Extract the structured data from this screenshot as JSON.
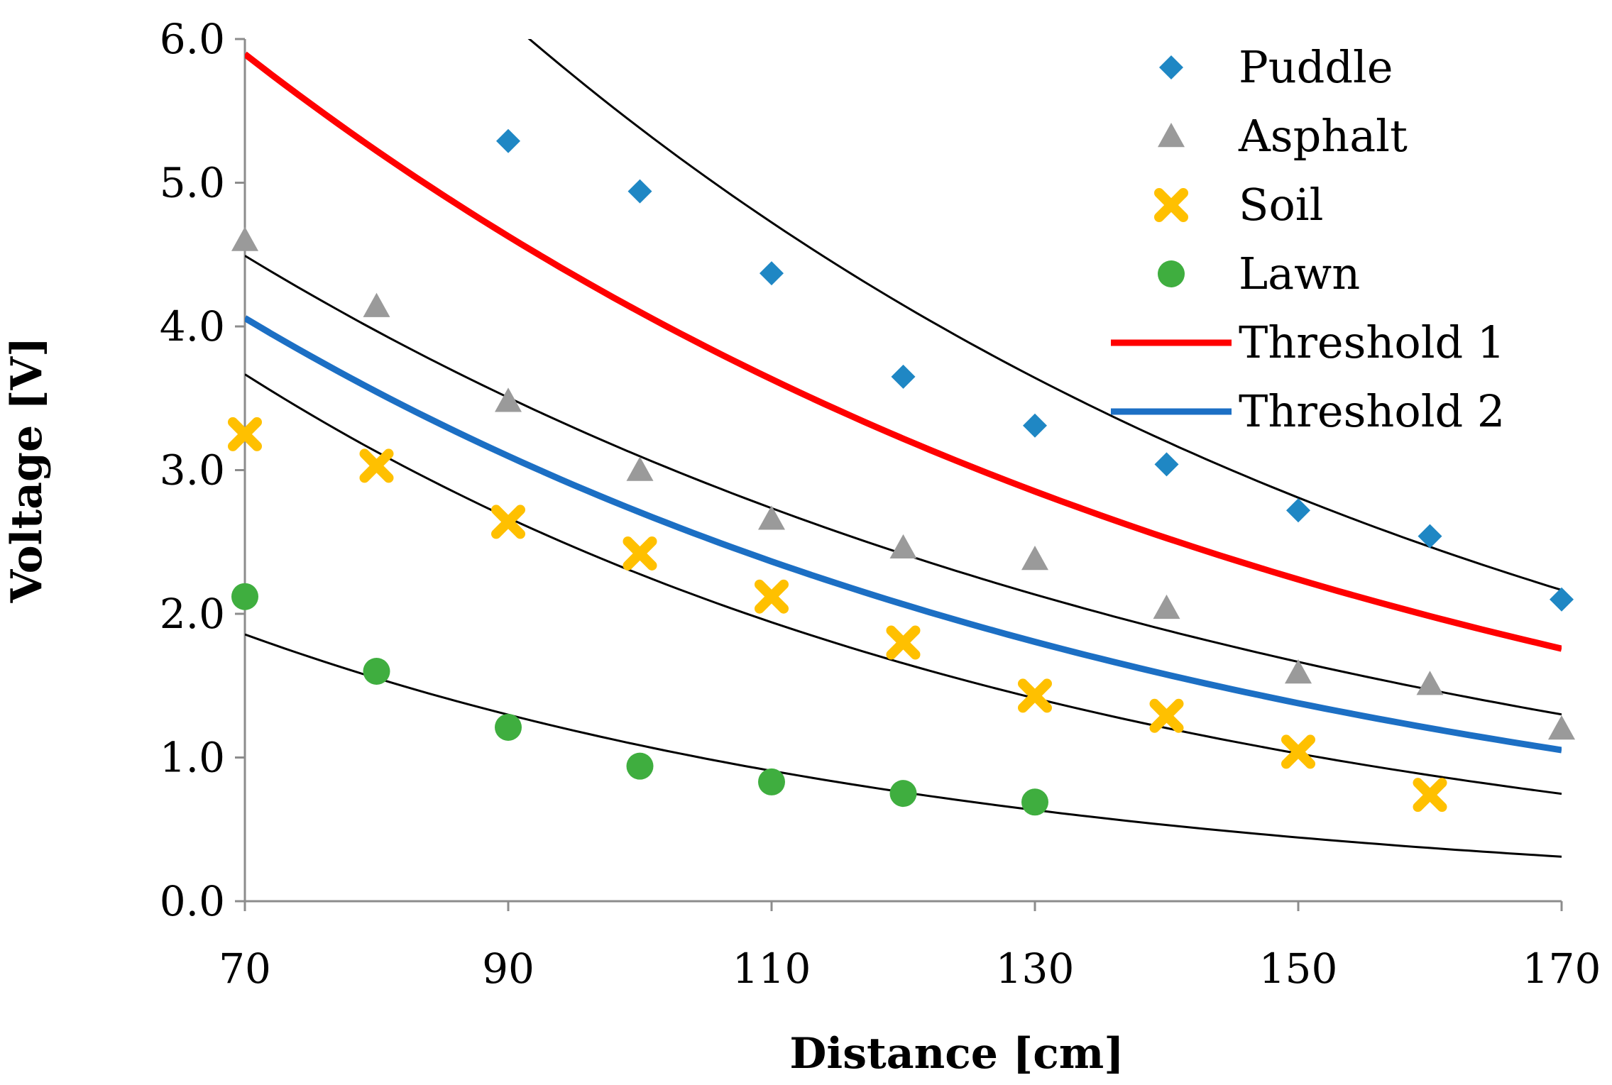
{
  "chart_data": {
    "type": "scatter",
    "title": "",
    "xlabel": "Distance [cm]",
    "ylabel": "Voltage [V]",
    "xlim": [
      70,
      170
    ],
    "ylim": [
      0,
      6
    ],
    "xticks": [
      70,
      90,
      110,
      130,
      150,
      170
    ],
    "xtick_labels": [
      "70",
      "90",
      "110",
      "130",
      "150",
      "170"
    ],
    "yticks": [
      0,
      1,
      2,
      3,
      4,
      5,
      6
    ],
    "ytick_labels": [
      "0.0",
      "1.0",
      "2.0",
      "3.0",
      "4.0",
      "5.0",
      "6.0"
    ],
    "grid": false,
    "legend_position": "top-right",
    "series": [
      {
        "name": "Puddle",
        "kind": "points",
        "marker": "diamond",
        "color": "#1f87c4",
        "x": [
          90,
          100,
          110,
          120,
          130,
          140,
          150,
          160,
          170
        ],
        "y": [
          5.29,
          4.94,
          4.37,
          3.65,
          3.31,
          3.04,
          2.72,
          2.54,
          2.1
        ]
      },
      {
        "name": "Asphalt",
        "kind": "points",
        "marker": "triangle",
        "color": "#9a9a9a",
        "x": [
          70,
          80,
          90,
          100,
          110,
          120,
          130,
          140,
          150,
          160,
          170
        ],
        "y": [
          4.6,
          4.14,
          3.48,
          3.0,
          2.66,
          2.46,
          2.38,
          2.04,
          1.59,
          1.51,
          1.2
        ]
      },
      {
        "name": "Soil",
        "kind": "points",
        "marker": "x",
        "color": "#ffc000",
        "x": [
          70,
          80,
          90,
          100,
          110,
          120,
          130,
          140,
          150,
          160
        ],
        "y": [
          3.25,
          3.03,
          2.64,
          2.42,
          2.12,
          1.8,
          1.43,
          1.29,
          1.04,
          0.74
        ]
      },
      {
        "name": "Lawn",
        "kind": "points",
        "marker": "circle",
        "color": "#3fae3f",
        "x": [
          70,
          80,
          90,
          100,
          110,
          120,
          130
        ],
        "y": [
          2.12,
          1.6,
          1.21,
          0.94,
          0.83,
          0.75,
          0.69
        ]
      },
      {
        "name": "Threshold 1",
        "kind": "line",
        "color": "#ff0000",
        "a": 13.75,
        "b": -0.0121
      },
      {
        "name": "Threshold 2",
        "kind": "line",
        "color": "#1c6fc4",
        "a": 10.44,
        "b": -0.0135
      }
    ],
    "trendlines": [
      {
        "fit": "exponential",
        "of": "Puddle",
        "a": 19.74,
        "b": -0.013
      },
      {
        "fit": "exponential",
        "of": "Asphalt",
        "a": 10.7,
        "b": -0.0124
      },
      {
        "fit": "exponential",
        "of": "Soil",
        "a": 11.16,
        "b": -0.0159
      },
      {
        "fit": "exponential",
        "of": "Lawn",
        "a": 6.5,
        "b": -0.0179
      }
    ]
  }
}
